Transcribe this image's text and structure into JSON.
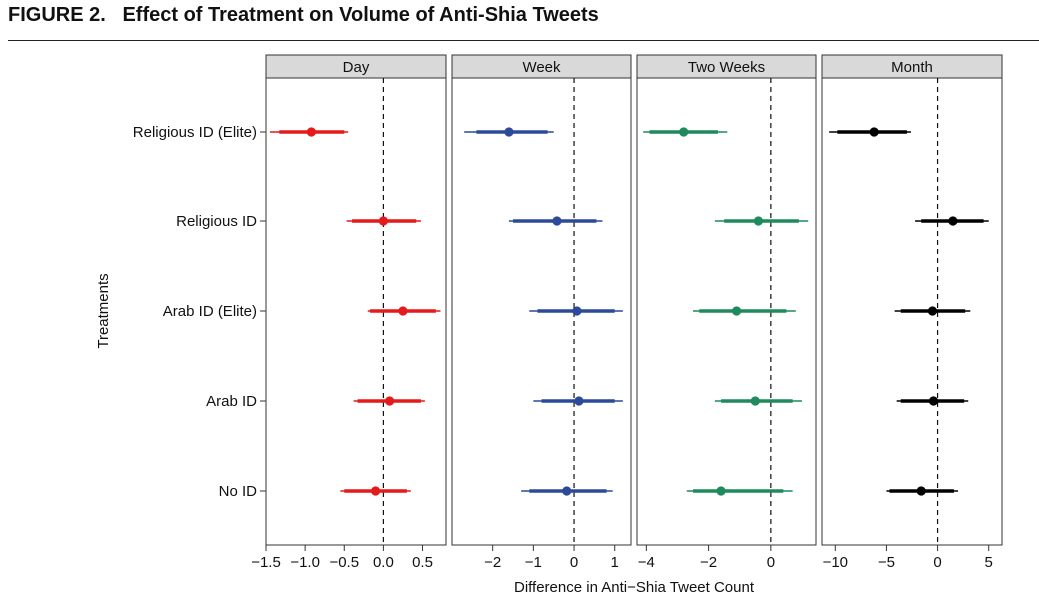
{
  "figure": {
    "label": "FIGURE 2.",
    "title": "Effect of Treatment on Volume of Anti-Shia Tweets"
  },
  "chart_data": {
    "type": "scatter",
    "subtype": "coefficient-plot-faceted",
    "title": "Effect of Treatment on Volume of Anti-Shia Tweets",
    "xlabel": "Difference in Anti−Shia Tweet Count",
    "ylabel": "Treatments",
    "categories": [
      "Religious ID (Elite)",
      "Religious ID",
      "Arab ID (Elite)",
      "Arab ID",
      "No ID"
    ],
    "reference_line": 0,
    "grid": false,
    "panels": [
      {
        "name": "Day",
        "color": "#e41a1c",
        "xlim": [
          -1.5,
          0.8
        ],
        "ticks": [
          -1.5,
          -1.0,
          -0.5,
          0.0,
          0.5
        ],
        "tick_labels": [
          "−1.5",
          "−1.0",
          "−0.5",
          "0.0",
          "0.5"
        ],
        "estimates": [
          -0.92,
          0.0,
          0.25,
          0.08,
          -0.1
        ],
        "ci_inner": [
          [
            -1.33,
            -0.5
          ],
          [
            -0.4,
            0.42
          ],
          [
            -0.17,
            0.67
          ],
          [
            -0.33,
            0.48
          ],
          [
            -0.5,
            0.3
          ]
        ],
        "ci_outer": [
          [
            -1.45,
            -0.45
          ],
          [
            -0.47,
            0.48
          ],
          [
            -0.2,
            0.73
          ],
          [
            -0.38,
            0.53
          ],
          [
            -0.55,
            0.35
          ]
        ]
      },
      {
        "name": "Week",
        "color": "#2c4a99",
        "xlim": [
          -3.0,
          1.4
        ],
        "ticks": [
          -2,
          -1,
          0,
          1
        ],
        "tick_labels": [
          "−2",
          "−1",
          "0",
          "1"
        ],
        "estimates": [
          -1.6,
          -0.42,
          0.07,
          0.12,
          -0.18
        ],
        "ci_inner": [
          [
            -2.4,
            -0.65
          ],
          [
            -1.5,
            0.55
          ],
          [
            -0.9,
            1.0
          ],
          [
            -0.8,
            1.0
          ],
          [
            -1.1,
            0.8
          ]
        ],
        "ci_outer": [
          [
            -2.7,
            -0.5
          ],
          [
            -1.6,
            0.7
          ],
          [
            -1.1,
            1.2
          ],
          [
            -1.0,
            1.2
          ],
          [
            -1.3,
            0.95
          ]
        ]
      },
      {
        "name": "Two Weeks",
        "color": "#1f8a5c",
        "xlim": [
          -4.3,
          1.45
        ],
        "ticks": [
          -4,
          -2,
          0
        ],
        "tick_labels": [
          "−4",
          "−2",
          "0"
        ],
        "estimates": [
          -2.8,
          -0.4,
          -1.1,
          -0.5,
          -1.6
        ],
        "ci_inner": [
          [
            -3.9,
            -1.7
          ],
          [
            -1.5,
            0.9
          ],
          [
            -2.3,
            0.5
          ],
          [
            -1.6,
            0.7
          ],
          [
            -2.5,
            0.4
          ]
        ],
        "ci_outer": [
          [
            -4.1,
            -1.4
          ],
          [
            -1.8,
            1.2
          ],
          [
            -2.5,
            0.8
          ],
          [
            -1.8,
            1.0
          ],
          [
            -2.7,
            0.7
          ]
        ]
      },
      {
        "name": "Month",
        "color": "#000000",
        "xlim": [
          -11.3,
          6.3
        ],
        "ticks": [
          -10,
          -5,
          0,
          5
        ],
        "tick_labels": [
          "−10",
          "−5",
          "0",
          "5"
        ],
        "estimates": [
          -6.2,
          1.5,
          -0.5,
          -0.4,
          -1.6
        ],
        "ci_inner": [
          [
            -9.8,
            -3.0
          ],
          [
            -1.6,
            4.5
          ],
          [
            -3.6,
            2.7
          ],
          [
            -3.6,
            2.6
          ],
          [
            -4.7,
            1.6
          ]
        ],
        "ci_outer": [
          [
            -10.6,
            -2.6
          ],
          [
            -2.2,
            5.0
          ],
          [
            -4.2,
            3.2
          ],
          [
            -4.0,
            3.0
          ],
          [
            -5.0,
            2.0
          ]
        ]
      }
    ]
  }
}
